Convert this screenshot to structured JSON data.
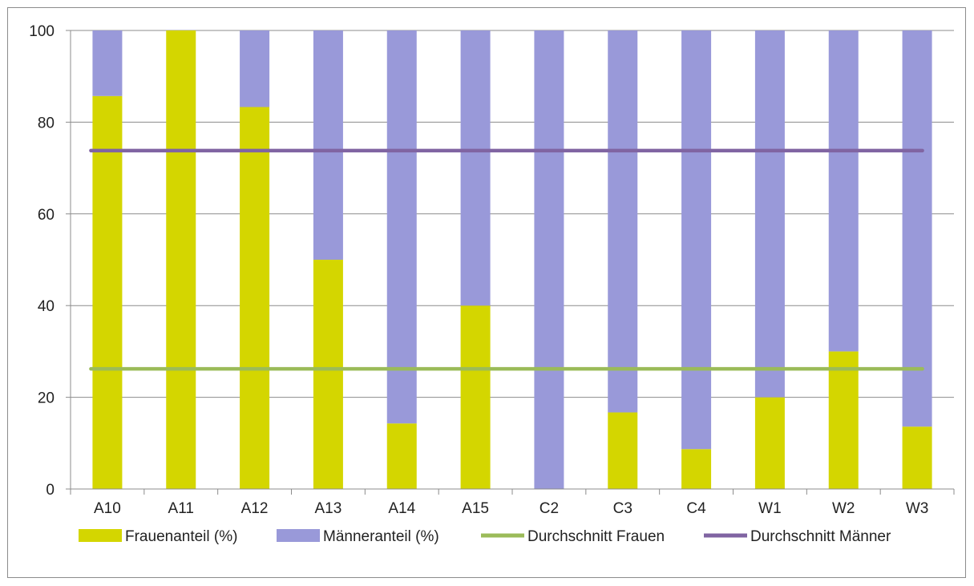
{
  "chart_data": {
    "type": "bar",
    "stacked": true,
    "categories": [
      "A10",
      "A11",
      "A12",
      "A13",
      "A14",
      "A15",
      "C2",
      "C3",
      "C4",
      "W1",
      "W2",
      "W3"
    ],
    "series": [
      {
        "name": "Frauenanteil (%)",
        "color": "#d4d600",
        "values": [
          85.7,
          100,
          83.3,
          50,
          14.3,
          40,
          0,
          16.7,
          8.7,
          20,
          30,
          13.6
        ]
      },
      {
        "name": "Männeranteil (%)",
        "color": "#9999d9",
        "values": [
          14.3,
          0,
          16.7,
          50,
          85.7,
          60,
          100,
          83.3,
          91.3,
          80,
          70,
          86.4
        ]
      }
    ],
    "lines": [
      {
        "name": "Durchschnitt Frauen",
        "color": "#9bbb59",
        "value": 26.2
      },
      {
        "name": "Durchschnitt Männer",
        "color": "#8064a2",
        "value": 73.8
      }
    ],
    "ylim": [
      0,
      100
    ],
    "yticks": [
      "0",
      "20",
      "40",
      "60",
      "80",
      "100"
    ],
    "grid": true,
    "legend_position": "bottom"
  }
}
